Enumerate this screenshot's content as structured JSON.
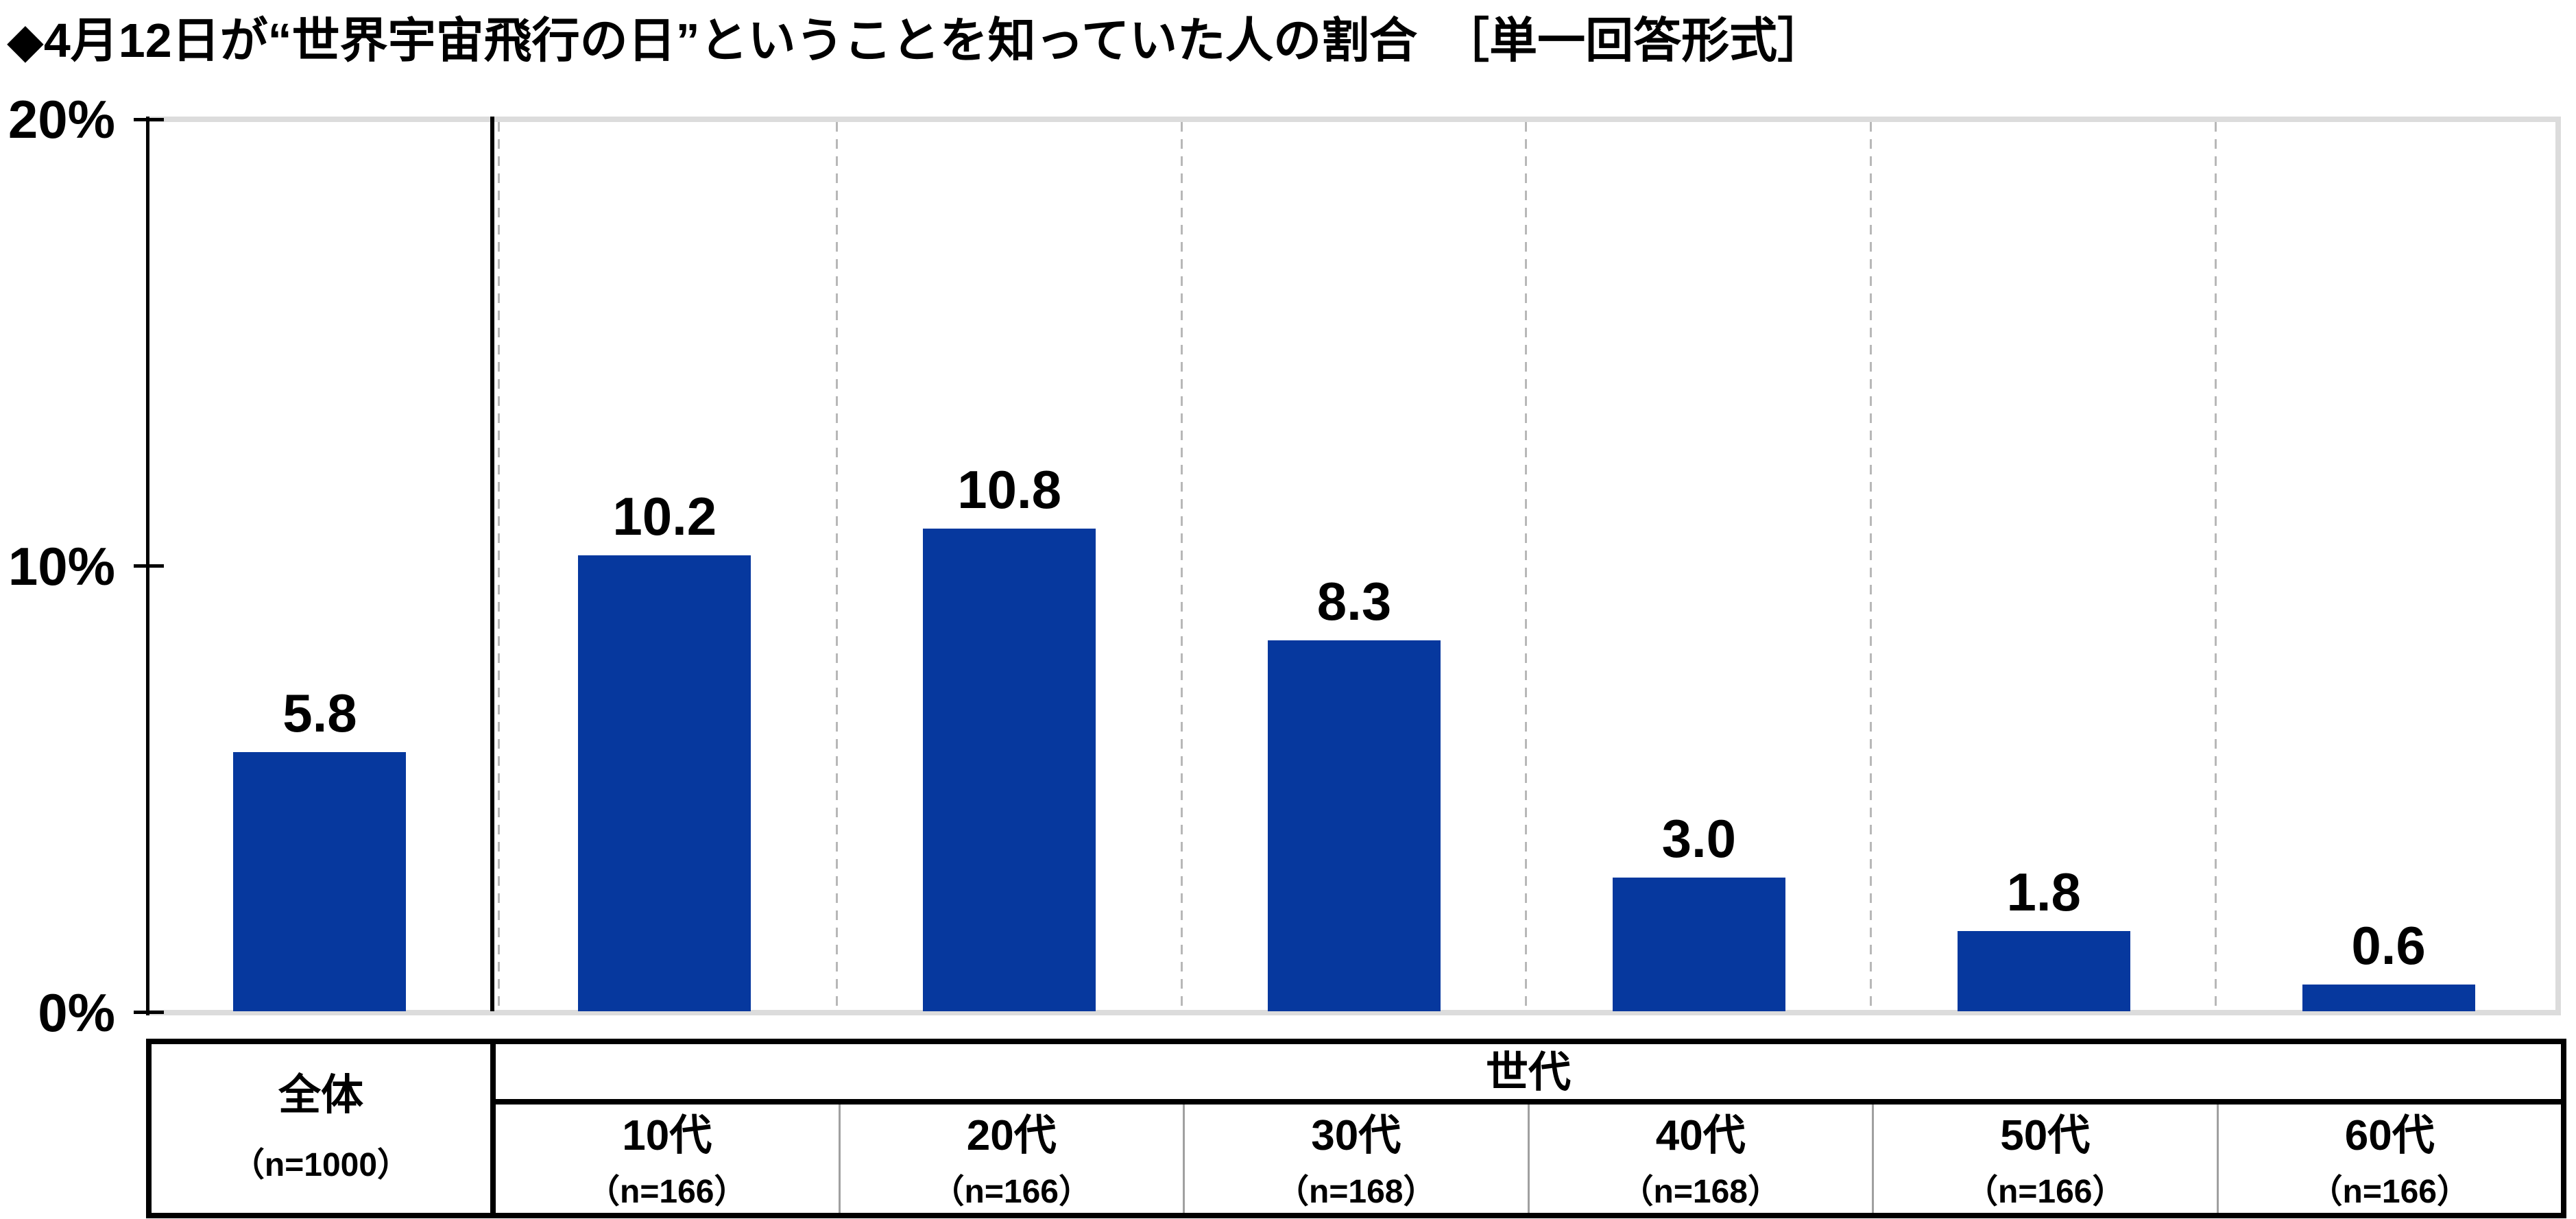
{
  "title": "◆4月12日が“世界宇宙飛行の日”ということを知っていた人の割合　［単一回答形式］",
  "colors": {
    "bar": "#06389e",
    "grid": "#dcdcdc",
    "dashed_grid": "#b8b8b8",
    "cell_divider": "#a0a0a0",
    "text": "#000000"
  },
  "chart_data": {
    "type": "bar",
    "title": "◆4月12日が“世界宇宙飛行の日”ということを知っていた人の割合　［単一回答形式］",
    "categories": [
      "全体",
      "10代",
      "20代",
      "30代",
      "40代",
      "50代",
      "60代"
    ],
    "sample_labels": [
      "（n=1000）",
      "（n=166）",
      "（n=166）",
      "（n=168）",
      "（n=168）",
      "（n=166）",
      "（n=166）"
    ],
    "values": [
      5.8,
      10.2,
      10.8,
      8.3,
      3.0,
      1.8,
      0.6
    ],
    "value_labels": [
      "5.8",
      "10.2",
      "10.8",
      "8.3",
      "3.0",
      "1.8",
      "0.6"
    ],
    "group_header": "世代",
    "group_members": [
      "10代",
      "20代",
      "30代",
      "40代",
      "50代",
      "60代"
    ],
    "ylabel": "",
    "xlabel": "",
    "ylim": [
      0,
      20
    ],
    "yticks": [
      0,
      10,
      20
    ],
    "ytick_labels": [
      "20%",
      "10%",
      "0%"
    ],
    "legend": "none",
    "grid": "horizontal lines at 0% and 20% only; dashed vertical separators between columns; solid divider between 全体 and 世代 group"
  }
}
